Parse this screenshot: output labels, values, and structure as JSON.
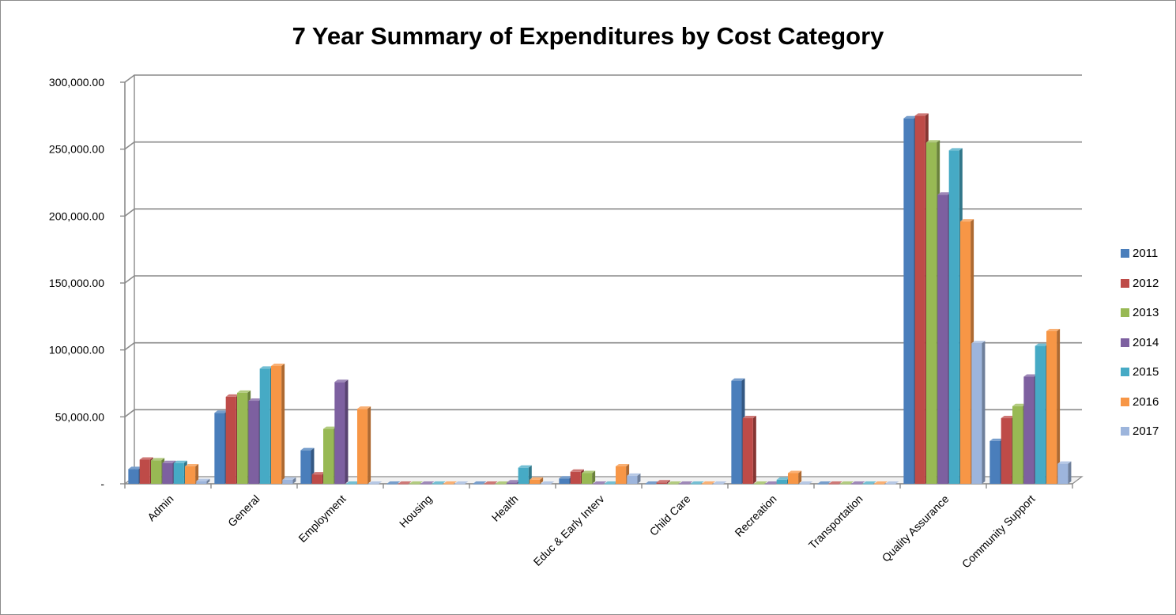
{
  "chart_data": {
    "type": "bar",
    "title": "7 Year Summary of Expenditures by Cost Category",
    "xlabel": "",
    "ylabel": "",
    "ylim": [
      0,
      300000
    ],
    "y_ticks": [
      {
        "value": 0,
        "label": "-"
      },
      {
        "value": 50000,
        "label": "50,000.00"
      },
      {
        "value": 100000,
        "label": "100,000.00"
      },
      {
        "value": 150000,
        "label": "150,000.00"
      },
      {
        "value": 200000,
        "label": "200,000.00"
      },
      {
        "value": 250000,
        "label": "250,000.00"
      },
      {
        "value": 300000,
        "label": "300,000.00"
      }
    ],
    "grid": true,
    "legend_position": "right",
    "categories": [
      "Admin",
      "General",
      "Employment",
      "Housing",
      "Health",
      "Educ & Early Interv",
      "Child Care",
      "Recreation",
      "Transportation",
      "Quality Assurance",
      "Community Support"
    ],
    "series": [
      {
        "name": "2011",
        "color": "#4a7ebb",
        "values": [
          11000,
          53000,
          25000,
          0,
          0,
          4000,
          0,
          77000,
          0,
          273000,
          32000
        ]
      },
      {
        "name": "2012",
        "color": "#be4b48",
        "values": [
          18000,
          65000,
          7000,
          0,
          0,
          9000,
          1000,
          49000,
          0,
          275000,
          49000
        ]
      },
      {
        "name": "2013",
        "color": "#98b954",
        "values": [
          17500,
          68000,
          41000,
          0,
          0,
          8000,
          0,
          0,
          0,
          255000,
          58000
        ]
      },
      {
        "name": "2014",
        "color": "#7d60a0",
        "values": [
          15500,
          62000,
          76000,
          0,
          1000,
          0,
          0,
          0,
          0,
          216000,
          80000
        ]
      },
      {
        "name": "2015",
        "color": "#46aac5",
        "values": [
          15500,
          86000,
          0,
          0,
          12000,
          0,
          0,
          3000,
          0,
          249000,
          103000
        ]
      },
      {
        "name": "2016",
        "color": "#f79646",
        "values": [
          13000,
          88000,
          56000,
          0,
          3000,
          13000,
          0,
          8000,
          0,
          196000,
          114000
        ]
      },
      {
        "name": "2017",
        "color": "#9db5dc",
        "values": [
          2000,
          3000,
          0,
          0,
          0,
          6000,
          0,
          0,
          0,
          105000,
          15000
        ]
      }
    ]
  }
}
